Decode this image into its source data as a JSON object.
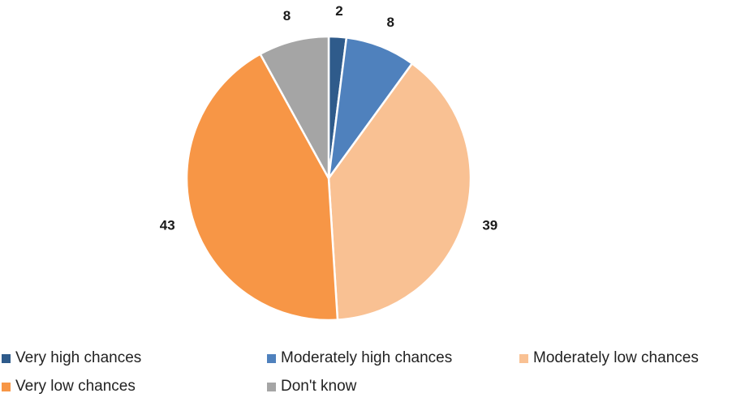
{
  "chart_data": {
    "type": "pie",
    "categories": [
      "Very high chances",
      "Moderately high chances",
      "Moderately low chances",
      "Very low chances",
      "Don't know"
    ],
    "values": [
      2,
      8,
      39,
      43,
      8
    ],
    "data_labels": [
      "2",
      "8",
      "39",
      "43",
      "8"
    ],
    "colors": [
      "#2f5b8b",
      "#4f81bd",
      "#f9c193",
      "#f79646",
      "#a5a5a5"
    ],
    "legend_position": "bottom",
    "start_angle": "top, clockwise"
  }
}
